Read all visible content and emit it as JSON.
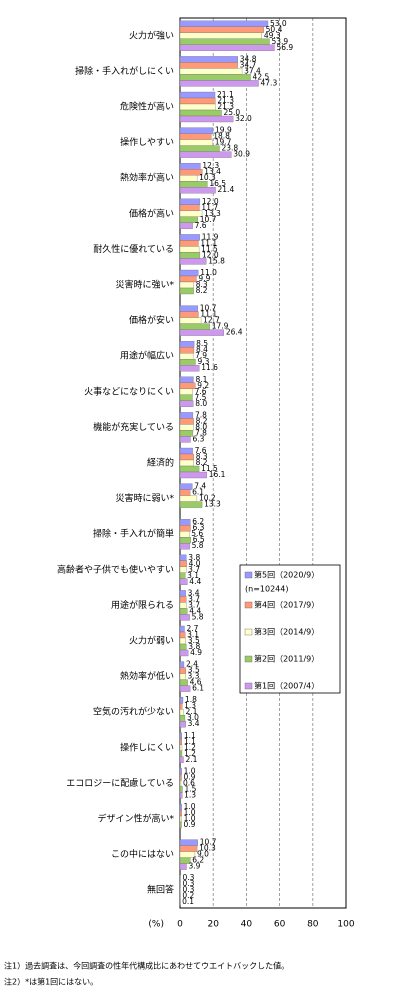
{
  "chart_data": {
    "type": "hbar",
    "categories": [
      "火力が強い",
      "掃除・手入れがしにくい",
      "危険性が高い",
      "操作しやすい",
      "熱効率が高い",
      "価格が高い",
      "耐久性に優れている",
      "災害時に強い*",
      "価格が安い",
      "用途が幅広い",
      "火事などになりにくい",
      "機能が充実している",
      "経済的",
      "災害時に弱い*",
      "掃除・手入れが簡単",
      "高齢者や子供でも使いやすい",
      "用途が限られる",
      "火力が弱い",
      "熱効率が低い",
      "空気の汚れが少ない",
      "操作しにくい",
      "エコロジーに配慮している",
      "デザイン性が高い*",
      "この中にはない",
      "無回答"
    ],
    "series": [
      {
        "name": "第5回（2020/9）",
        "color": "#9999ff",
        "values": [
          53.0,
          34.8,
          21.1,
          19.9,
          12.3,
          12.0,
          11.9,
          11.0,
          10.7,
          8.5,
          8.1,
          7.8,
          7.6,
          7.4,
          6.2,
          3.8,
          3.4,
          2.7,
          2.4,
          1.8,
          1.1,
          1.0,
          1.0,
          10.7,
          0.3
        ],
        "value_labels": [
          "53.0",
          "34.8",
          "21.1",
          "19.9",
          "12.3",
          "12.0",
          "11.9",
          "11.0",
          "10.7",
          "8.5",
          "8.1",
          "7.8",
          "7.6",
          "7.4",
          "6.2",
          "3.8",
          "3.4",
          "2.7",
          "2.4",
          "1.8",
          "1.1",
          "1.0",
          "1.0",
          "10.7",
          "0.3"
        ]
      },
      {
        "name": "第4回（2017/9）",
        "color": "#ff9977",
        "values": [
          50.4,
          34.7,
          21.3,
          18.8,
          13.4,
          11.7,
          11.1,
          9.9,
          11.1,
          8.4,
          9.2,
          8.2,
          8.3,
          6.1,
          6.3,
          4.0,
          3.7,
          3.1,
          3.5,
          1.3,
          1.1,
          0.9,
          1.0,
          10.3,
          0.3
        ],
        "value_labels": [
          "50.4",
          "34.7",
          "21.3",
          "18.8",
          "13.4",
          "11.7",
          "11.1",
          "9.9",
          "11.1",
          "8.4",
          "9.2",
          "8.2",
          "8.3",
          "6.1",
          "6.3",
          "4.0",
          "3.7",
          "3.1",
          "3.5",
          "1.3",
          "1.1",
          "0.9",
          "1.0",
          "10.3",
          "0.3"
        ]
      },
      {
        "name": "第3回（2014/9）",
        "color": "#ffffcc",
        "values": [
          49.3,
          37.4,
          21.3,
          19.7,
          10.3,
          13.3,
          11.5,
          8.3,
          12.7,
          7.9,
          7.6,
          8.0,
          8.2,
          10.2,
          5.6,
          3.7,
          3.7,
          3.5,
          3.3,
          2.1,
          1.2,
          0.6,
          1.0,
          9.0,
          0.3
        ],
        "value_labels": [
          "49.3",
          "37.4",
          "21.3",
          "19.7",
          "10.3",
          "13.3",
          "11.5",
          "8.3",
          "12.7",
          "7.9",
          "7.6",
          "8.0",
          "8.2",
          "10.2",
          "5.6",
          "3.7",
          "3.7",
          "3.5",
          "3.3",
          "2.1",
          "1.2",
          "0.6",
          "1.0",
          "9.0",
          "0.3"
        ]
      },
      {
        "name": "第2回（2011/9）",
        "color": "#99cc66",
        "values": [
          53.9,
          42.5,
          25.0,
          23.8,
          16.5,
          10.7,
          12.0,
          8.2,
          17.9,
          9.3,
          7.5,
          7.8,
          11.5,
          13.3,
          6.5,
          3.1,
          4.4,
          3.8,
          4.6,
          3.0,
          1.2,
          1.5,
          0.9,
          6.2,
          0.2
        ],
        "value_labels": [
          "53.9",
          "42.5",
          "25.0",
          "23.8",
          "16.5",
          "10.7",
          "12.0",
          "8.2",
          "17.9",
          "9.3",
          "7.5",
          "7.8",
          "11.5",
          "13.3",
          "6.5",
          "3.1",
          "4.4",
          "3.8",
          "4.6",
          "3.0",
          "1.2",
          "1.5",
          "0.9",
          "6.2",
          "0.2"
        ]
      },
      {
        "name": "第1回（2007/4）",
        "color": "#cc99ee",
        "values": [
          56.9,
          47.3,
          32.0,
          30.9,
          21.4,
          7.6,
          15.8,
          null,
          26.4,
          11.6,
          8.0,
          6.3,
          16.1,
          null,
          5.8,
          4.4,
          5.8,
          4.9,
          6.1,
          3.4,
          2.1,
          1.3,
          null,
          3.9,
          0.1
        ],
        "value_labels": [
          "56.9",
          "47.3",
          "32.0",
          "30.9",
          "21.4",
          "7.6",
          "15.8",
          null,
          "26.4",
          "11.6",
          "8.0",
          "6.3",
          "16.1",
          null,
          "5.8",
          "4.4",
          "5.8",
          "4.9",
          "6.1",
          "3.4",
          "2.1",
          "1.3",
          null,
          "3.9",
          "0.1"
        ]
      }
    ],
    "legend_note": "(n=10244)",
    "xlabel": "(%)",
    "xlim": [
      0,
      100
    ],
    "xticks": [
      0,
      20,
      40,
      60,
      80,
      100
    ],
    "grid": true,
    "notes": [
      "注1）過去調査は、今回調査の性年代構成比にあわせてウエイトバックした値。",
      "注2）*は第1回にはない。"
    ]
  }
}
